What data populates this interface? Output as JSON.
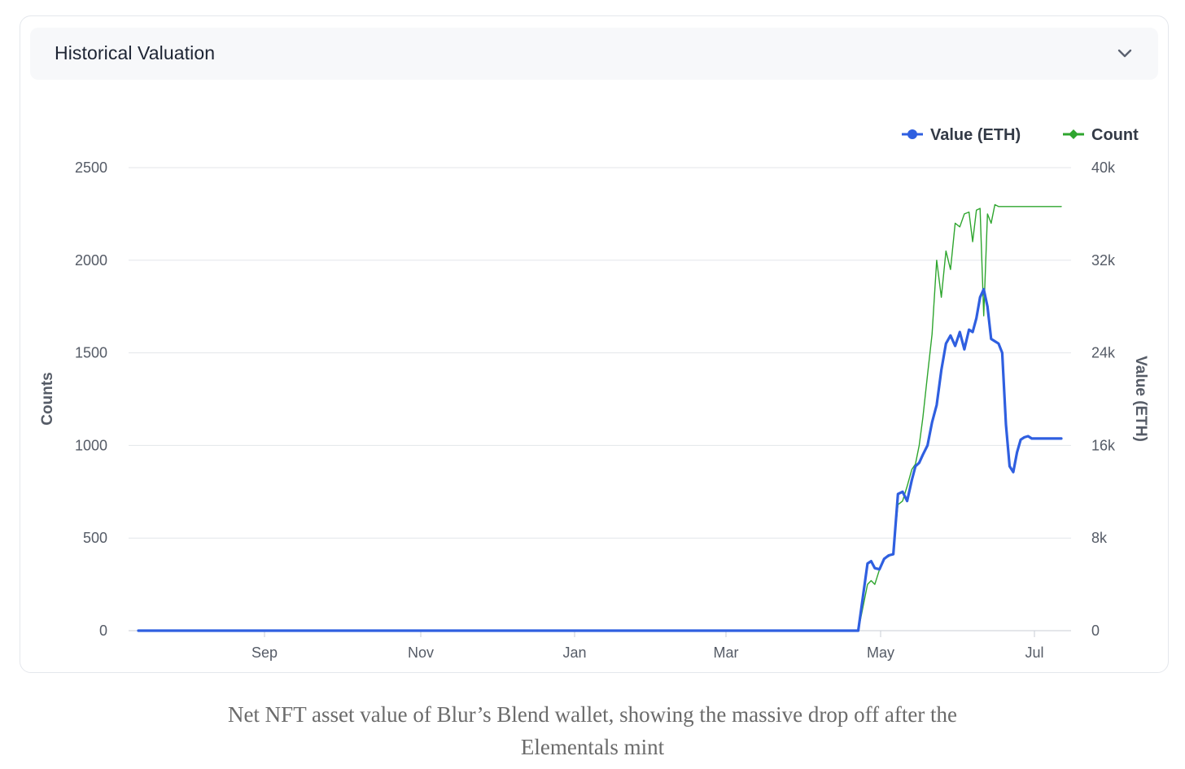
{
  "card": {
    "title": "Historical Valuation",
    "toggle_icon": "chevron-down-icon"
  },
  "caption": {
    "line1": "Net NFT asset value of Blur’s Blend wallet, showing the massive drop off after the",
    "line2": "Elementals mint"
  },
  "chart_data": {
    "type": "line",
    "title": "",
    "grid": true,
    "legend_position": "top-right",
    "x_axis": {
      "tick_labels": [
        "Sep",
        "Nov",
        "Jan",
        "Mar",
        "May",
        "Jul"
      ]
    },
    "y_axis_left": {
      "label": "Counts",
      "range": [
        0,
        2500
      ],
      "ticks": [
        "0",
        "500",
        "1000",
        "1500",
        "2000",
        "2500"
      ]
    },
    "y_axis_right": {
      "label": "Value (ETH)",
      "range": [
        0,
        40000
      ],
      "ticks": [
        "0",
        "8k",
        "16k",
        "24k",
        "32k",
        "40k"
      ]
    },
    "series": [
      {
        "name": "Value (ETH)",
        "color": "#2f5fe0",
        "axis": "right",
        "x": [
          0.0,
          0.15,
          0.3,
          0.46,
          0.62,
          0.78,
          0.79,
          0.794,
          0.798,
          0.803,
          0.808,
          0.813,
          0.818,
          0.823,
          0.828,
          0.833,
          0.838,
          0.842,
          0.846,
          0.85,
          0.855,
          0.86,
          0.865,
          0.87,
          0.875,
          0.88,
          0.885,
          0.89,
          0.895,
          0.9,
          0.904,
          0.908,
          0.912,
          0.916,
          0.92,
          0.924,
          0.928,
          0.932,
          0.936,
          0.94,
          0.944,
          0.948,
          0.952,
          0.956,
          0.96,
          0.964,
          0.968,
          0.972,
          0.976,
          0.98,
          0.984,
          0.988,
          0.992,
          0.996,
          1.0
        ],
        "y": [
          0,
          0,
          0,
          0,
          0,
          0,
          5800,
          6000,
          5400,
          5300,
          6200,
          6500,
          6600,
          11800,
          12000,
          11200,
          13000,
          14200,
          14500,
          15200,
          16000,
          18000,
          19500,
          22500,
          24800,
          25500,
          24600,
          25800,
          24300,
          26000,
          25800,
          27000,
          28800,
          29500,
          28000,
          25200,
          25000,
          24800,
          24000,
          17800,
          14200,
          13700,
          15400,
          16500,
          16700,
          16800,
          16600,
          16600,
          16600,
          16600,
          16600,
          16600,
          16600,
          16600,
          16600
        ]
      },
      {
        "name": "Count",
        "color": "#2ea52e",
        "axis": "left",
        "x": [
          0.0,
          0.15,
          0.3,
          0.46,
          0.62,
          0.78,
          0.79,
          0.794,
          0.798,
          0.803,
          0.808,
          0.813,
          0.818,
          0.823,
          0.828,
          0.833,
          0.838,
          0.842,
          0.846,
          0.85,
          0.855,
          0.86,
          0.865,
          0.87,
          0.875,
          0.88,
          0.885,
          0.89,
          0.895,
          0.9,
          0.904,
          0.908,
          0.912,
          0.916,
          0.92,
          0.924,
          0.928,
          0.932,
          0.936,
          0.94,
          0.944,
          0.948,
          0.952,
          0.956,
          0.96,
          0.964,
          0.968,
          0.972,
          0.976,
          0.98,
          0.984,
          0.988,
          0.992,
          0.996,
          1.0
        ],
        "y": [
          0,
          0,
          0,
          0,
          0,
          0,
          250,
          270,
          250,
          330,
          390,
          400,
          420,
          680,
          700,
          780,
          870,
          900,
          1000,
          1150,
          1380,
          1600,
          2000,
          1800,
          2050,
          1950,
          2200,
          2180,
          2250,
          2260,
          2100,
          2270,
          2280,
          1700,
          2250,
          2200,
          2300,
          2290,
          2290,
          2290,
          2290,
          2290,
          2290,
          2290,
          2290,
          2290,
          2290,
          2290,
          2290,
          2290,
          2290,
          2290,
          2290,
          2290,
          2290
        ]
      }
    ]
  }
}
